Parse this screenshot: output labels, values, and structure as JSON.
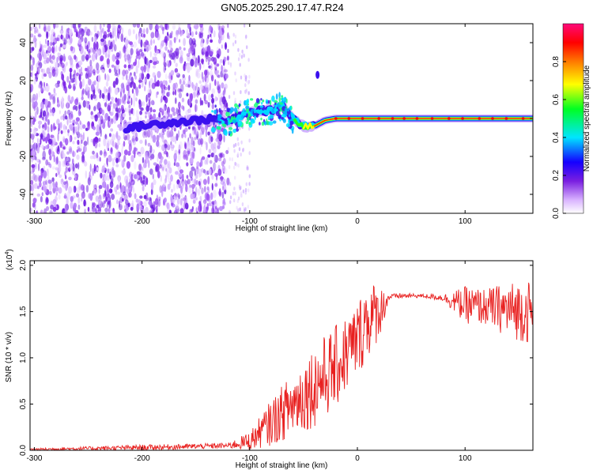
{
  "title": "GN05.2025.290.17.47.R24",
  "chart_data": [
    {
      "type": "heatmap",
      "xlabel": "Height of straight line (km)",
      "ylabel": "Frequency (Hz)",
      "xlim": [
        -304,
        163
      ],
      "ylim": [
        -50,
        50
      ],
      "xticks": [
        "-300",
        "-200",
        "-100",
        "0",
        "100"
      ],
      "xtick_values": [
        -300,
        -200,
        -100,
        0,
        100
      ],
      "yticks": [
        "-40",
        "-20",
        "0",
        "20",
        "40"
      ],
      "ytick_values": [
        -40,
        -20,
        0,
        20,
        40
      ],
      "colorbar": {
        "label": "Normalized spectral amplitude",
        "range": [
          0.0,
          1.0
        ],
        "ticks": [
          "0.0",
          "0.2",
          "0.4",
          "0.6",
          "0.8"
        ],
        "tick_values": [
          0.0,
          0.2,
          0.4,
          0.6,
          0.8
        ],
        "colors": [
          "#ffffff",
          "#d9b3ff",
          "#7a1fe0",
          "#1400ff",
          "#00e5ff",
          "#00ff22",
          "#ffff00",
          "#ff7a00",
          "#ff0000",
          "#ff0a7a"
        ]
      },
      "ridge": {
        "x": [
          -210,
          -190,
          -170,
          -150,
          -130,
          -120,
          -110,
          -100,
          -90,
          -80,
          -70,
          -60,
          -50,
          -40,
          -30,
          -20,
          -10,
          0,
          20,
          60,
          100,
          140,
          163
        ],
        "y": [
          -5,
          -3,
          -2,
          -1,
          0,
          -2,
          1,
          3,
          4,
          4,
          7,
          0,
          -4,
          -4,
          -1,
          0,
          0,
          0,
          0,
          0,
          0,
          0,
          0
        ]
      },
      "noise_region_x": [
        -304,
        -120
      ],
      "spot": {
        "x": -37,
        "y": 23
      },
      "grid": false
    },
    {
      "type": "line",
      "xlabel": "Height of straight line (km)",
      "ylabel": "SNR (10 * v/v)",
      "y_multiplier": "(x10",
      "y_multiplier_exp": "4",
      "xlim": [
        -304,
        163
      ],
      "ylim": [
        0,
        2.05
      ],
      "xticks": [
        "-300",
        "-200",
        "-100",
        "0",
        "100"
      ],
      "xtick_values": [
        -300,
        -200,
        -100,
        0,
        100
      ],
      "yticks": [
        "0.0",
        "0.5",
        "1.0",
        "1.5",
        "2.0"
      ],
      "ytick_values": [
        0,
        0.5,
        1.0,
        1.5,
        2.0
      ],
      "series": [
        {
          "color": "#e8201f",
          "envelope": {
            "x": [
              -304,
              -200,
              -120,
              -100,
              -80,
              -60,
              -40,
              -20,
              0,
              8,
              20,
              30,
              40,
              60,
              80,
              100,
              120,
              140,
              160,
              163
            ],
            "mean": [
              0.01,
              0.03,
              0.05,
              0.1,
              0.3,
              0.5,
              0.7,
              0.9,
              1.2,
              1.4,
              1.5,
              1.66,
              1.67,
              1.67,
              1.65,
              1.57,
              1.55,
              1.52,
              1.5,
              1.45
            ],
            "amp": [
              0.01,
              0.03,
              0.03,
              0.1,
              0.25,
              0.35,
              0.45,
              0.45,
              0.4,
              0.45,
              0.3,
              0.03,
              0.03,
              0.02,
              0.04,
              0.2,
              0.2,
              0.3,
              0.35,
              0.3
            ]
          }
        }
      ],
      "grid": false
    }
  ]
}
